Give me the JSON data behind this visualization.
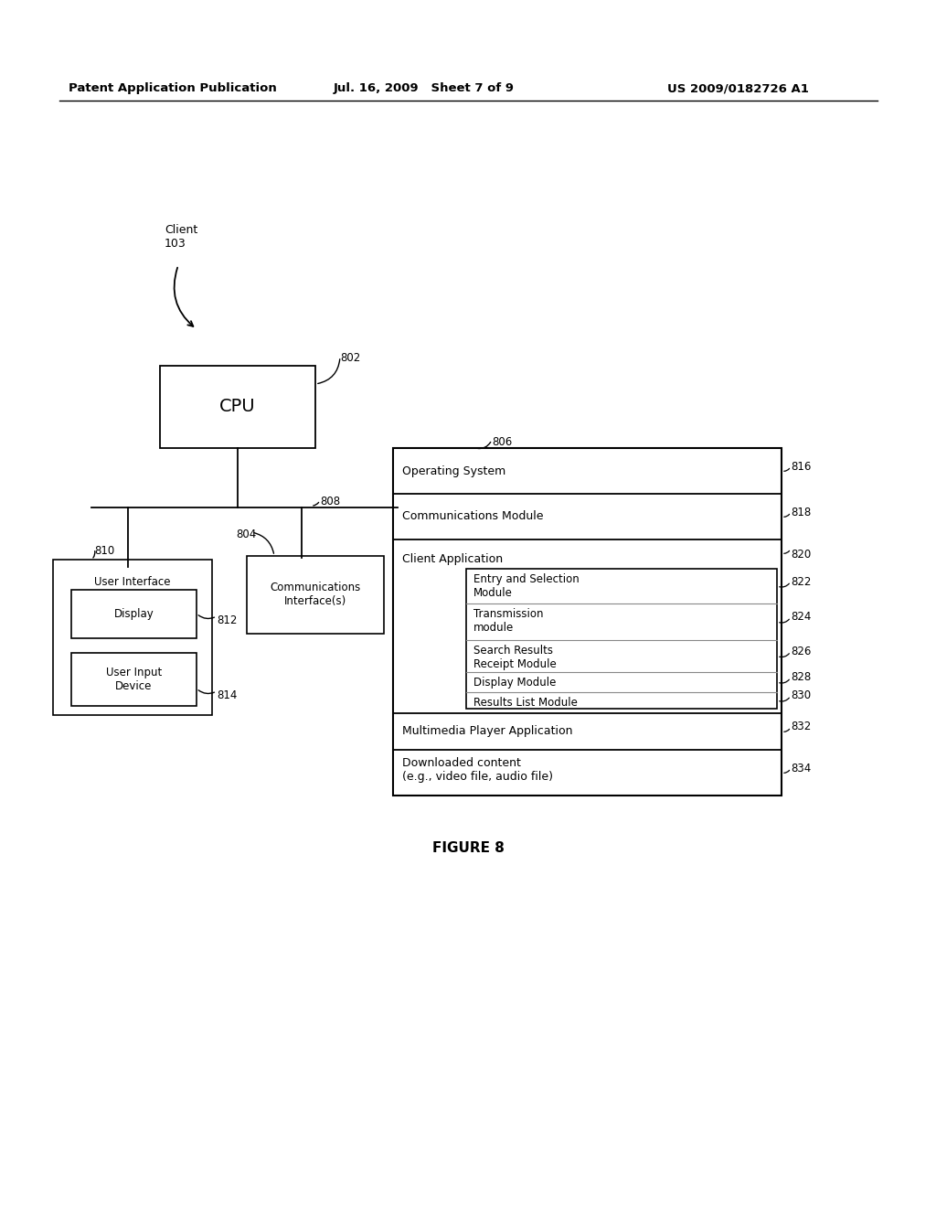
{
  "bg_color": "#ffffff",
  "header_left": "Patent Application Publication",
  "header_mid": "Jul. 16, 2009   Sheet 7 of 9",
  "header_right": "US 2009/0182726 A1",
  "figure_label": "FIGURE 8",
  "client_label": "Client\n103",
  "cpu_label": "CPU",
  "cpu_ref": "802",
  "software_ref": "806",
  "comm_if_ref": "804",
  "bus_ref": "808",
  "ui_ref": "810",
  "display_ref": "812",
  "userinput_ref": "814",
  "os_ref": "816",
  "commmod_ref": "818",
  "clientapp_ref": "820",
  "entry_ref": "822",
  "trans_ref": "824",
  "search_ref": "826",
  "display_mod_ref": "828",
  "results_ref": "830",
  "multimedia_ref": "832",
  "downloaded_ref": "834",
  "comm_if_label": "Communications\nInterface(s)",
  "ui_label": "User Interface",
  "display_label": "Display",
  "userinput_label": "User Input\nDevice",
  "os_label": "Operating System",
  "commmod_label": "Communications Module",
  "clientapp_label": "Client Application",
  "entry_label": "Entry and Selection\nModule",
  "trans_label": "Transmission\nmodule",
  "search_label": "Search Results\nReceipt Module",
  "display_mod_label": "Display Module",
  "results_label": "Results List Module",
  "multimedia_label": "Multimedia Player Application",
  "downloaded_label": "Downloaded content\n(e.g., video file, audio file)"
}
